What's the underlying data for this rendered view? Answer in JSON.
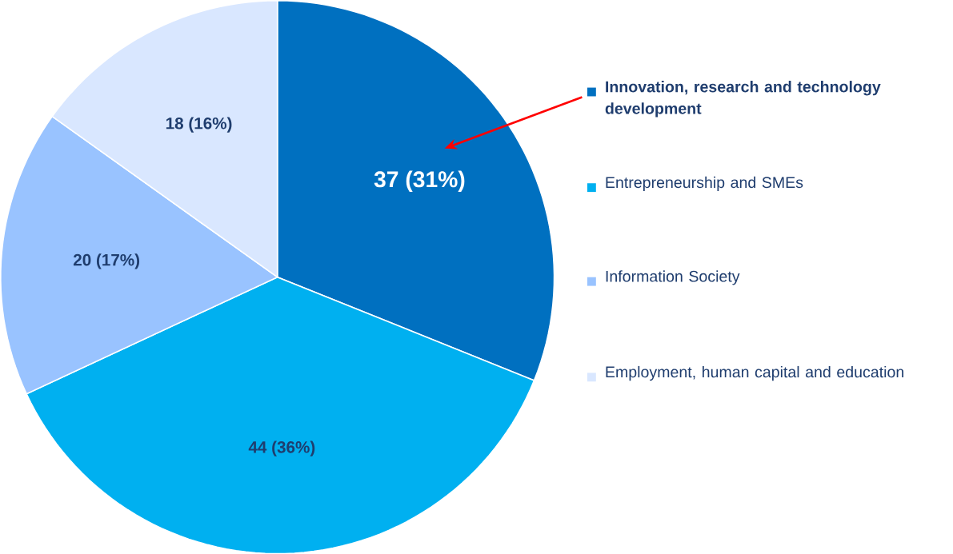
{
  "chart_data": {
    "type": "pie",
    "categories": [
      "Innovation, research and technology development",
      "Entrepreneurship and SMEs",
      "Information Society",
      "Employment, human capital and education"
    ],
    "values": [
      37,
      44,
      20,
      18
    ],
    "colors": [
      "#0070c0",
      "#00b0f0",
      "#99c3ff",
      "#d9e7ff"
    ],
    "value_labels": [
      "37 (31%)",
      "44 (36%)",
      "20 (17%)",
      "18 (16%)"
    ],
    "legend": "right"
  }
}
